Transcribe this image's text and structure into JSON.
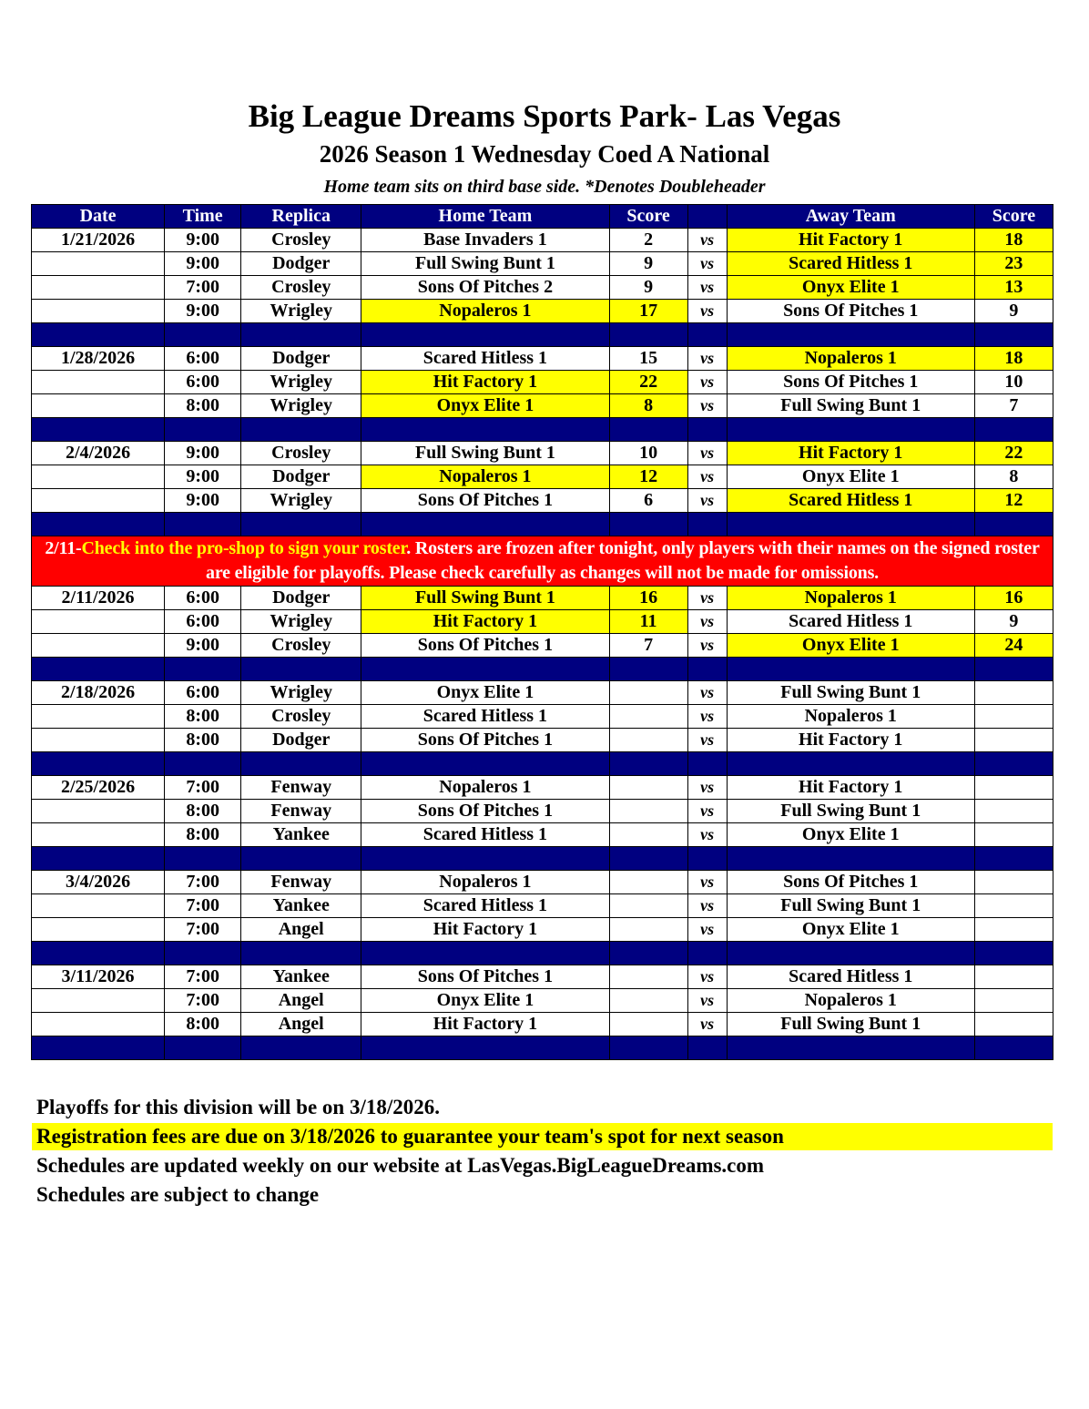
{
  "header": {
    "title": "Big League Dreams Sports Park- Las Vegas",
    "subtitle": "2026 Season 1 Wednesday Coed A National",
    "note": "Home team sits on third base side.  *Denotes Doubleheader"
  },
  "colors": {
    "header_bg": "#000080",
    "winner_highlight": "#ffff00",
    "notice_bg": "#ff0000"
  },
  "columns": [
    "Date",
    "Time",
    "Replica",
    "Home Team",
    "Score",
    "",
    "Away Team",
    "Score"
  ],
  "vs_label": "vs",
  "schedule": [
    {
      "type": "week",
      "date": "1/21/2026",
      "games": [
        {
          "time": "9:00",
          "field": "Crosley",
          "home": "Base Invaders 1",
          "home_score": "2",
          "away": "Hit Factory 1",
          "away_score": "18",
          "winner": "away"
        },
        {
          "time": "9:00",
          "field": "Dodger",
          "home": "Full Swing Bunt 1",
          "home_score": "9",
          "away": "Scared Hitless 1",
          "away_score": "23",
          "winner": "away"
        },
        {
          "time": "7:00",
          "field": "Crosley",
          "home": "Sons Of Pitches 2",
          "home_score": "9",
          "away": "Onyx Elite 1",
          "away_score": "13",
          "winner": "away"
        },
        {
          "time": "9:00",
          "field": "Wrigley",
          "home": "Nopaleros 1",
          "home_score": "17",
          "away": "Sons Of Pitches 1",
          "away_score": "9",
          "winner": "home"
        }
      ]
    },
    {
      "type": "week",
      "date": "1/28/2026",
      "games": [
        {
          "time": "6:00",
          "field": "Dodger",
          "home": "Scared Hitless 1",
          "home_score": "15",
          "away": "Nopaleros 1",
          "away_score": "18",
          "winner": "away"
        },
        {
          "time": "6:00",
          "field": "Wrigley",
          "home": "Hit Factory 1",
          "home_score": "22",
          "away": "Sons Of Pitches 1",
          "away_score": "10",
          "winner": "home"
        },
        {
          "time": "8:00",
          "field": "Wrigley",
          "home": "Onyx Elite 1",
          "home_score": "8",
          "away": "Full Swing Bunt 1",
          "away_score": "7",
          "winner": "home"
        }
      ]
    },
    {
      "type": "week",
      "date": "2/4/2026",
      "games": [
        {
          "time": "9:00",
          "field": "Crosley",
          "home": "Full Swing Bunt 1",
          "home_score": "10",
          "away": "Hit Factory 1",
          "away_score": "22",
          "winner": "away"
        },
        {
          "time": "9:00",
          "field": "Dodger",
          "home": "Nopaleros 1",
          "home_score": "12",
          "away": "Onyx Elite 1",
          "away_score": "8",
          "winner": "home"
        },
        {
          "time": "9:00",
          "field": "Wrigley",
          "home": "Sons Of Pitches 1",
          "home_score": "6",
          "away": "Scared Hitless 1",
          "away_score": "12",
          "winner": "away"
        }
      ]
    },
    {
      "type": "notice",
      "prefix": "2/11-",
      "highlight": "Check into the pro-shop to sign your roster",
      "text": ". Rosters are frozen after tonight, only players with their names on the signed roster are eligible for playoffs. Please check carefully as changes will not be made for omissions."
    },
    {
      "type": "week",
      "date": "2/11/2026",
      "games": [
        {
          "time": "6:00",
          "field": "Dodger",
          "home": "Full Swing Bunt 1",
          "home_score": "16",
          "away": "Nopaleros 1",
          "away_score": "16",
          "winner": "both"
        },
        {
          "time": "6:00",
          "field": "Wrigley",
          "home": "Hit Factory 1",
          "home_score": "11",
          "away": "Scared Hitless 1",
          "away_score": "9",
          "winner": "home"
        },
        {
          "time": "9:00",
          "field": "Crosley",
          "home": "Sons Of Pitches 1",
          "home_score": "7",
          "away": "Onyx Elite 1",
          "away_score": "24",
          "winner": "away"
        }
      ]
    },
    {
      "type": "week",
      "date": "2/18/2026",
      "games": [
        {
          "time": "6:00",
          "field": "Wrigley",
          "home": "Onyx Elite 1",
          "home_score": "",
          "away": "Full Swing Bunt 1",
          "away_score": "",
          "winner": ""
        },
        {
          "time": "8:00",
          "field": "Crosley",
          "home": "Scared Hitless 1",
          "home_score": "",
          "away": "Nopaleros 1",
          "away_score": "",
          "winner": ""
        },
        {
          "time": "8:00",
          "field": "Dodger",
          "home": "Sons Of Pitches 1",
          "home_score": "",
          "away": "Hit Factory 1",
          "away_score": "",
          "winner": ""
        }
      ]
    },
    {
      "type": "week",
      "date": "2/25/2026",
      "games": [
        {
          "time": "7:00",
          "field": "Fenway",
          "home": "Nopaleros 1",
          "home_score": "",
          "away": "Hit Factory 1",
          "away_score": "",
          "winner": ""
        },
        {
          "time": "8:00",
          "field": "Fenway",
          "home": "Sons Of Pitches 1",
          "home_score": "",
          "away": "Full Swing Bunt 1",
          "away_score": "",
          "winner": ""
        },
        {
          "time": "8:00",
          "field": "Yankee",
          "home": "Scared Hitless 1",
          "home_score": "",
          "away": "Onyx Elite 1",
          "away_score": "",
          "winner": ""
        }
      ]
    },
    {
      "type": "week",
      "date": "3/4/2026",
      "games": [
        {
          "time": "7:00",
          "field": "Fenway",
          "home": "Nopaleros 1",
          "home_score": "",
          "away": "Sons Of Pitches 1",
          "away_score": "",
          "winner": ""
        },
        {
          "time": "7:00",
          "field": "Yankee",
          "home": "Scared Hitless 1",
          "home_score": "",
          "away": "Full Swing Bunt 1",
          "away_score": "",
          "winner": ""
        },
        {
          "time": "7:00",
          "field": "Angel",
          "home": "Hit Factory 1",
          "home_score": "",
          "away": "Onyx Elite 1",
          "away_score": "",
          "winner": ""
        }
      ]
    },
    {
      "type": "week",
      "date": "3/11/2026",
      "games": [
        {
          "time": "7:00",
          "field": "Yankee",
          "home": "Sons Of Pitches 1",
          "home_score": "",
          "away": "Scared Hitless 1",
          "away_score": "",
          "winner": ""
        },
        {
          "time": "7:00",
          "field": "Angel",
          "home": "Onyx Elite 1",
          "home_score": "",
          "away": "Nopaleros 1",
          "away_score": "",
          "winner": ""
        },
        {
          "time": "8:00",
          "field": "Angel",
          "home": "Hit Factory 1",
          "home_score": "",
          "away": "Full Swing Bunt 1",
          "away_score": "",
          "winner": ""
        }
      ]
    }
  ],
  "footer": {
    "playoffs": "Playoffs for this division will be on 3/18/2026.",
    "registration": "Registration fees are due on 3/18/2026 to guarantee your team's spot for next season",
    "website": "Schedules are updated weekly on our website at LasVegas.BigLeagueDreams.com",
    "disclaimer": "Schedules are subject to change"
  }
}
